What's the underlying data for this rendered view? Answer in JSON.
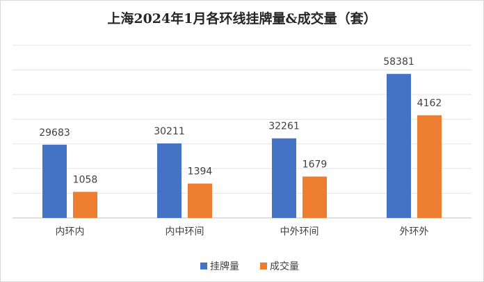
{
  "chart_data": {
    "type": "bar",
    "title": "上海2024年1月各环线挂牌量&成交量（套）",
    "categories": [
      "内环内",
      "内中环间",
      "中外环间",
      "外环外"
    ],
    "series": [
      {
        "name": "挂牌量",
        "color": "#4472c4",
        "values": [
          29683,
          30211,
          32261,
          58381
        ]
      },
      {
        "name": "成交量",
        "color": "#ed7d31",
        "values": [
          1058,
          1394,
          1679,
          4162
        ],
        "axis": "y2"
      }
    ],
    "ylim": [
      0,
      70000
    ],
    "yticks": [
      0,
      10000,
      20000,
      30000,
      40000,
      50000,
      60000,
      70000
    ],
    "y2lim": [
      0,
      7000
    ],
    "show_tick_labels": false,
    "grid": true,
    "data_labels": true,
    "legend": "bottom"
  }
}
